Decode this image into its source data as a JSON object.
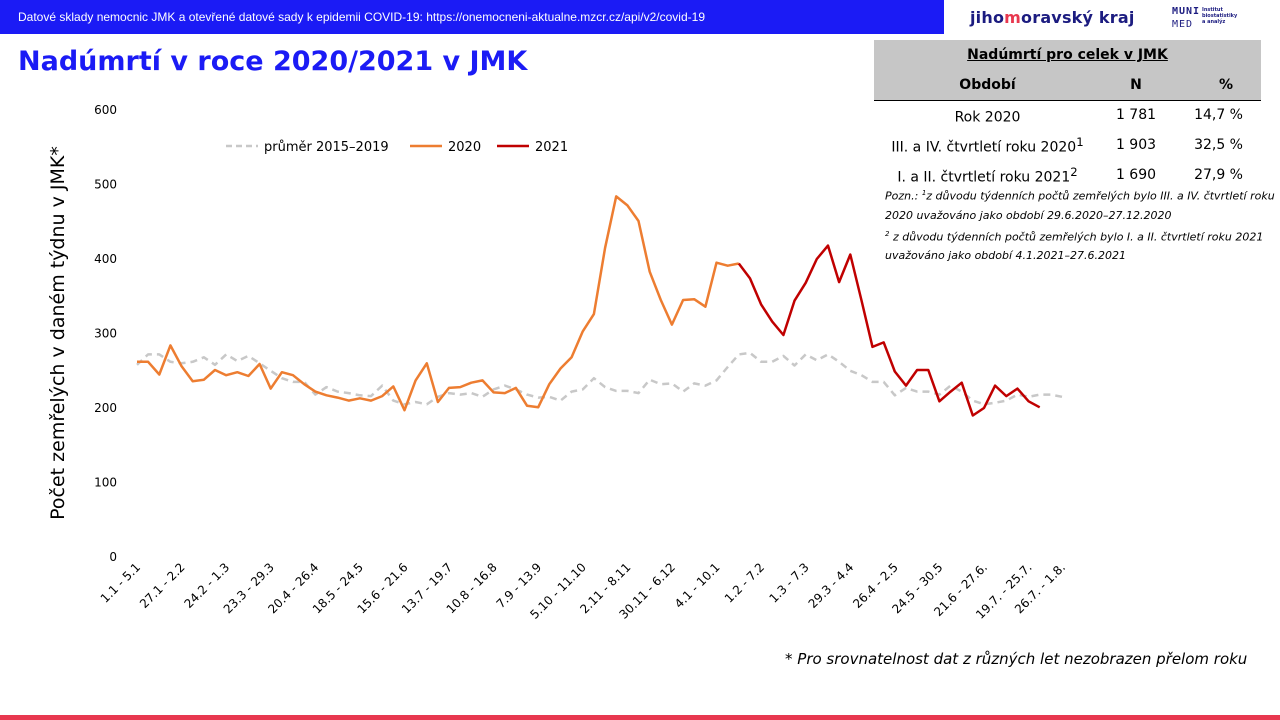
{
  "banner": {
    "text": "Datové sklady nemocnic JMK a otevřené datové sady k epidemii COVID-19: https://onemocneni-aktualne.mzcr.cz/api/v2/covid-19"
  },
  "brand": {
    "pre": "jiho",
    "mid": "m",
    "post": "oravský kraj"
  },
  "muni": {
    "line1": "MUNI",
    "line2": "MED",
    "institute": "Institut biostatistiky a analýz"
  },
  "page_title": "Nadúmrtí v roce 2020/2021 v JMK",
  "table": {
    "title": "Nadúmrtí  pro celek v JMK",
    "headers": [
      "Období",
      "N",
      "%"
    ],
    "rows": [
      {
        "period": "Rok 2020",
        "sup": "",
        "n": "1 781",
        "pct": "14,7 %"
      },
      {
        "period": "III. a IV. čtvrtletí roku 2020",
        "sup": "1",
        "n": "1 903",
        "pct": "32,5 %"
      },
      {
        "period": "I. a II. čtvrtletí roku 2021",
        "sup": "2",
        "n": "1 690",
        "pct": "27,9 %"
      }
    ]
  },
  "note": {
    "lead": "Pozn.: ",
    "sup1": "1",
    "text1": "z důvodu týdenních počtů zemřelých bylo III. a IV. čtvrtletí roku 2020  uvažováno jako období 29.6.2020–27.12.2020",
    "sup2": "2",
    "text2": " z důvodu týdenních počtů zemřelých bylo I. a II. čtvrtletí roku 2021  uvažováno jako období 4.1.2021–27.6.2021"
  },
  "footnote": "* Pro srovnatelnost dat z různých let nezobrazen přelom roku",
  "colors": {
    "banner": "#1b1bf5",
    "avg": "#c8c8c8",
    "y2020": "#ed7d31",
    "y2021": "#c00000",
    "accent": "#e8384f"
  },
  "chart_data": {
    "type": "line",
    "ylabel": "Počet zemřelých v daném týdnu v JMK*",
    "ylim": [
      0,
      600
    ],
    "yticks": [
      0,
      100,
      200,
      300,
      400,
      500,
      600
    ],
    "n_weeks": 84,
    "xtick_labels": [
      {
        "label": "1.1 - 5.1",
        "index": 0
      },
      {
        "label": "27.1 - 2.2",
        "index": 4
      },
      {
        "label": "24.2 - 1.3",
        "index": 8
      },
      {
        "label": "23.3 - 29.3",
        "index": 12
      },
      {
        "label": "20.4 - 26.4",
        "index": 16
      },
      {
        "label": "18.5 - 24.5",
        "index": 20
      },
      {
        "label": "15.6 - 21.6",
        "index": 24
      },
      {
        "label": "13.7 - 19.7",
        "index": 28
      },
      {
        "label": "10.8 - 16.8",
        "index": 32
      },
      {
        "label": "7.9 - 13.9",
        "index": 36
      },
      {
        "label": "5.10 - 11.10",
        "index": 40
      },
      {
        "label": "2.11 - 8.11",
        "index": 44
      },
      {
        "label": "30.11 - 6.12",
        "index": 48
      },
      {
        "label": "4.1 - 10.1",
        "index": 52
      },
      {
        "label": "1.2 - 7.2",
        "index": 56
      },
      {
        "label": "1.3 - 7.3",
        "index": 60
      },
      {
        "label": "29.3 - 4.4",
        "index": 64
      },
      {
        "label": "26.4 - 2.5",
        "index": 68
      },
      {
        "label": "24.5 - 30.5",
        "index": 72
      },
      {
        "label": "21.6 - 27.6.",
        "index": 76
      },
      {
        "label": "19.7. - 25.7.",
        "index": 80
      },
      {
        "label": "26.7. - 1.8.",
        "index": 83
      }
    ],
    "legend": {
      "placement": "top-left"
    },
    "series": [
      {
        "name": "průměr  2015–2019",
        "style": "dashed",
        "start_index": 0,
        "values": [
          258,
          272,
          272,
          262,
          260,
          262,
          268,
          258,
          272,
          263,
          270,
          260,
          250,
          240,
          235,
          235,
          218,
          228,
          222,
          220,
          217,
          216,
          230,
          210,
          205,
          208,
          205,
          215,
          220,
          218,
          220,
          215,
          225,
          230,
          225,
          218,
          214,
          215,
          210,
          222,
          225,
          240,
          228,
          223,
          223,
          220,
          238,
          232,
          233,
          222,
          233,
          230,
          237,
          255,
          272,
          274,
          262,
          262,
          270,
          257,
          272,
          264,
          272,
          262,
          250,
          244,
          235,
          235,
          217,
          227,
          222,
          222,
          218,
          230,
          222,
          210,
          205,
          207,
          210,
          218,
          215,
          218,
          218,
          215
        ]
      },
      {
        "name": "2020",
        "style": "solid",
        "start_index": 0,
        "values": [
          262,
          262,
          245,
          284,
          256,
          236,
          238,
          251,
          244,
          248,
          243,
          259,
          226,
          248,
          244,
          232,
          222,
          217,
          214,
          210,
          213,
          210,
          216,
          229,
          197,
          237,
          260,
          208,
          227,
          228,
          234,
          237,
          221,
          220,
          227,
          203,
          201,
          232,
          253,
          268,
          303,
          326,
          415,
          484,
          472,
          451,
          383,
          345,
          312,
          345,
          346,
          336,
          395,
          391,
          394
        ]
      },
      {
        "name": "2021",
        "style": "solid",
        "start_index": 54,
        "values": [
          394,
          374,
          339,
          316,
          298,
          344,
          368,
          400,
          418,
          369,
          406,
          345,
          282,
          288,
          249,
          230,
          251,
          251,
          209,
          222,
          234,
          190,
          200,
          230,
          216,
          226,
          209,
          201
        ]
      }
    ]
  }
}
